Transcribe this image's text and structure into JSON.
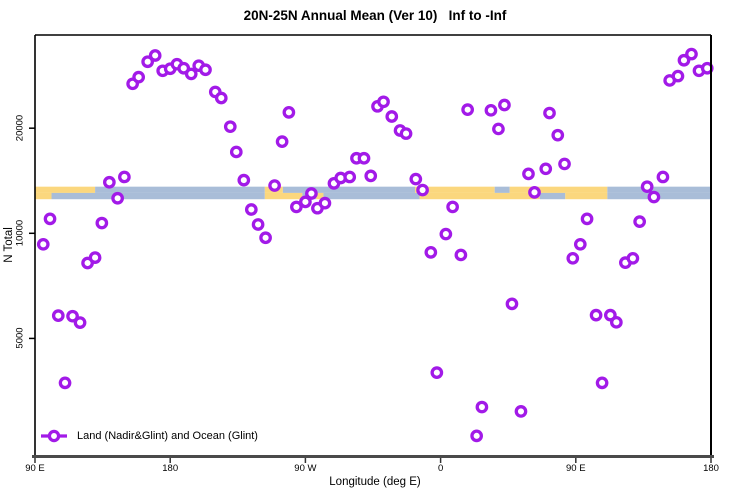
{
  "title": "20N-25N Annual Mean (Ver 10)   Inf to -Inf",
  "axes": {
    "x": {
      "label": "Longitude (deg E)",
      "range_axis_deg": [
        90,
        540
      ],
      "ticks": [
        {
          "pos": 90,
          "label": "90 E"
        },
        {
          "pos": 180,
          "label": "180"
        },
        {
          "pos": 270,
          "label": "90 W"
        },
        {
          "pos": 360,
          "label": "0"
        },
        {
          "pos": 450,
          "label": "90 E"
        },
        {
          "pos": 540,
          "label": "180"
        }
      ]
    },
    "y": {
      "label": "N Total",
      "scale": "log10",
      "range": [
        2320,
        37000
      ],
      "ticks": [
        {
          "value": 5000,
          "label": "5000"
        },
        {
          "value": 10000,
          "label": "10000"
        },
        {
          "value": 20000,
          "label": "20000"
        }
      ]
    }
  },
  "legend": {
    "label": "Land (Nadir&Glint) and Ocean (Glint)",
    "marker": "open-circle-on-line"
  },
  "colors": {
    "point": "#A21AE8",
    "land": "#FBD77E",
    "ocean": "#A9BDD8",
    "frame": "#000000",
    "bottom_axis": "#4A4A4A",
    "tick": "#333333"
  },
  "chart_data": {
    "type": "scatter",
    "title": "20N-25N Annual Mean (Ver 10)   Inf to -Inf",
    "xlabel": "Longitude (deg E)",
    "ylabel": "N Total",
    "x_axis_note": "longitude axis runs 90E eastward around globe to 180 (axis coords 90..540 deg)",
    "y_scale": "log10",
    "ylim": [
      2320,
      37000
    ],
    "grid": false,
    "legend_position": "bottom-left",
    "series_name": "Land (Nadir&Glint) and Ocean (Glint)",
    "points": [
      [
        155,
        26800
      ],
      [
        159,
        28000
      ],
      [
        165,
        31000
      ],
      [
        170,
        32300
      ],
      [
        175,
        29200
      ],
      [
        180,
        29600
      ],
      [
        184.5,
        30500
      ],
      [
        189,
        29700
      ],
      [
        194,
        28600
      ],
      [
        199,
        30200
      ],
      [
        203.5,
        29400
      ],
      [
        210,
        25400
      ],
      [
        214,
        24400
      ],
      [
        220,
        20200
      ],
      [
        224,
        17100
      ],
      [
        229,
        14200
      ],
      [
        512.5,
        27400
      ],
      [
        518,
        28200
      ],
      [
        522,
        31300
      ],
      [
        527,
        32600
      ],
      [
        532,
        29200
      ],
      [
        537.5,
        29700
      ],
      [
        259,
        22200
      ],
      [
        254.5,
        18300
      ],
      [
        318,
        23100
      ],
      [
        322,
        23800
      ],
      [
        327.5,
        21600
      ],
      [
        333,
        19700
      ],
      [
        337,
        19300
      ],
      [
        378,
        22600
      ],
      [
        393.5,
        22500
      ],
      [
        402.5,
        23300
      ],
      [
        398.5,
        19900
      ],
      [
        432.5,
        22100
      ],
      [
        438,
        19100
      ],
      [
        249.5,
        13700
      ],
      [
        274,
        13000
      ],
      [
        289,
        13900
      ],
      [
        293.5,
        14400
      ],
      [
        299.5,
        14500
      ],
      [
        304,
        16400
      ],
      [
        309,
        16400
      ],
      [
        313.5,
        14600
      ],
      [
        343.5,
        14300
      ],
      [
        348,
        13300
      ],
      [
        418.5,
        14800
      ],
      [
        430,
        15300
      ],
      [
        442.5,
        15800
      ],
      [
        422.5,
        13100
      ],
      [
        497.5,
        13600
      ],
      [
        502,
        12700
      ],
      [
        508,
        14500
      ],
      [
        139.5,
        14000
      ],
      [
        145,
        12600
      ],
      [
        149.5,
        14500
      ],
      [
        100,
        11000
      ],
      [
        95.5,
        9300
      ],
      [
        134.5,
        10700
      ],
      [
        125,
        8220
      ],
      [
        130,
        8520
      ],
      [
        234,
        11700
      ],
      [
        238.5,
        10600
      ],
      [
        243.5,
        9710
      ],
      [
        264,
        11900
      ],
      [
        270,
        12300
      ],
      [
        278,
        11800
      ],
      [
        283,
        12200
      ],
      [
        368,
        11900
      ],
      [
        363.5,
        9950
      ],
      [
        353.5,
        8820
      ],
      [
        373.5,
        8670
      ],
      [
        457.5,
        11000
      ],
      [
        492.5,
        10800
      ],
      [
        453,
        9300
      ],
      [
        448,
        8480
      ],
      [
        483,
        8240
      ],
      [
        488,
        8480
      ],
      [
        105.5,
        5810
      ],
      [
        115,
        5790
      ],
      [
        120,
        5550
      ],
      [
        407.5,
        6280
      ],
      [
        463.5,
        5830
      ],
      [
        473,
        5830
      ],
      [
        477,
        5560
      ],
      [
        110,
        3730
      ],
      [
        357.5,
        3990
      ],
      [
        467.5,
        3730
      ],
      [
        387.5,
        3180
      ],
      [
        413.5,
        3090
      ],
      [
        384,
        2630
      ]
    ],
    "map_strip": {
      "description": "land/ocean occurrence strip across longitude, centered near N=13000",
      "rows": [
        {
          "n_top": 13600,
          "n_bottom": 13050,
          "segments": [
            [
              90,
              130,
              "land"
            ],
            [
              130,
              243,
              "ocean"
            ],
            [
              243,
              255,
              "land"
            ],
            [
              255,
              343,
              "ocean"
            ],
            [
              343,
              396,
              "land"
            ],
            [
              396,
              406,
              "ocean"
            ],
            [
              406,
              471,
              "land"
            ],
            [
              471,
              540,
              "ocean"
            ]
          ]
        },
        {
          "n_top": 13050,
          "n_bottom": 12520,
          "segments": [
            [
              90,
              101,
              "land"
            ],
            [
              101,
              243,
              "ocean"
            ],
            [
              243,
              268,
              "land"
            ],
            [
              268,
              277,
              "ocean"
            ],
            [
              277,
              282,
              "land"
            ],
            [
              282,
              346,
              "ocean"
            ],
            [
              346,
              426,
              "land"
            ],
            [
              426,
              443,
              "ocean"
            ],
            [
              443,
              471,
              "land"
            ],
            [
              471,
              540,
              "ocean"
            ]
          ]
        }
      ]
    }
  }
}
